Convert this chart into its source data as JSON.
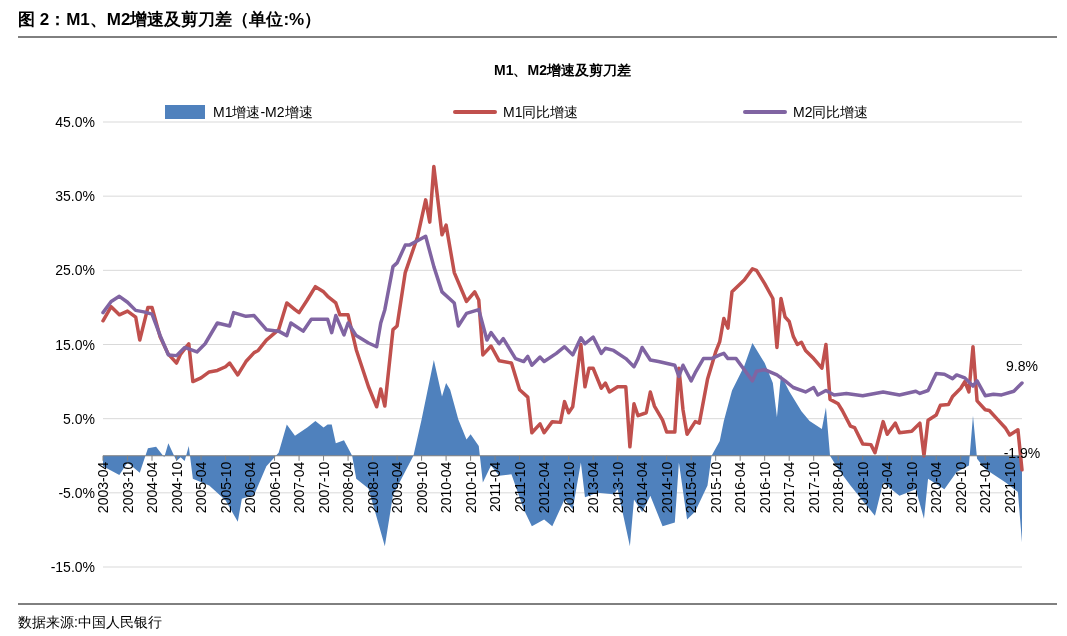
{
  "chart_data": {
    "type": "line",
    "title": "图 2：M1、M2增速及剪刀差（单位:%）",
    "subtitle": "M1、M2增速及剪刀差",
    "annotations": [
      "数据来源:中国人民银行",
      {
        "text": "9.8%",
        "x": "2022-01",
        "y": 9.8
      },
      {
        "text": "-1.9%",
        "x": "2022-01",
        "y": -1.9
      }
    ],
    "series": [
      {
        "name": "M1增速-M2增速",
        "type": "area",
        "color": "#4f81bd",
        "x": [
          "2003-04",
          "2003-08",
          "2003-10",
          "2004-01",
          "2004-03",
          "2004-05",
          "2004-07",
          "2004-08",
          "2004-10",
          "2004-11",
          "2004-12",
          "2005-01",
          "2005-02",
          "2005-06",
          "2005-10",
          "2006-01",
          "2006-02",
          "2006-05",
          "2006-08",
          "2006-11",
          "2007-01",
          "2007-03",
          "2007-06",
          "2007-08",
          "2007-10",
          "2007-11",
          "2007-12",
          "2008-01",
          "2008-03",
          "2008-05",
          "2008-06",
          "2008-09",
          "2009-01",
          "2009-03",
          "2009-08",
          "2009-10",
          "2010-01",
          "2010-03",
          "2010-04",
          "2010-05",
          "2010-07",
          "2010-09",
          "2010-10",
          "2010-12",
          "2011-01",
          "2011-03",
          "2011-05",
          "2011-08",
          "2011-11",
          "2012-01",
          "2012-04",
          "2012-06",
          "2012-09",
          "2012-11",
          "2013-01",
          "2013-02",
          "2013-05",
          "2013-09",
          "2013-10",
          "2014-01",
          "2014-02",
          "2014-04",
          "2014-06",
          "2014-09",
          "2014-12",
          "2015-01",
          "2015-03",
          "2015-05",
          "2015-08",
          "2015-09",
          "2015-11",
          "2015-12",
          "2016-02",
          "2016-05",
          "2016-07",
          "2016-10",
          "2016-12",
          "2017-01",
          "2017-02",
          "2017-04",
          "2017-07",
          "2017-09",
          "2017-12",
          "2018-01",
          "2018-02",
          "2018-04",
          "2018-07",
          "2019-01",
          "2019-03",
          "2019-07",
          "2019-11",
          "2020-01",
          "2020-02",
          "2020-06",
          "2020-09",
          "2020-12",
          "2021-01",
          "2021-02",
          "2021-04",
          "2021-09",
          "2021-12",
          "2022-01"
        ],
        "values": [
          -1.4,
          -2.6,
          -0.9,
          -2.3,
          1.0,
          1.2,
          -0.2,
          1.7,
          -0.7,
          -0.2,
          -0.7,
          1.3,
          -3.1,
          -4.0,
          -6.0,
          -8.9,
          -5.8,
          -5.3,
          -1.4,
          0.4,
          4.2,
          2.7,
          3.8,
          4.7,
          3.8,
          4.2,
          4.2,
          1.7,
          2.1,
          0.0,
          -3.1,
          -4.4,
          -12.2,
          -5.3,
          0.0,
          4.9,
          12.9,
          8.0,
          9.8,
          8.9,
          4.9,
          2.2,
          2.9,
          1.3,
          -3.6,
          -1.3,
          -2.7,
          -2.5,
          -7.2,
          -9.5,
          -8.6,
          -9.5,
          -5.9,
          -7.2,
          -0.9,
          -5.6,
          -5.0,
          -5.2,
          -4.5,
          -12.2,
          -5.9,
          -7.6,
          -5.4,
          -9.5,
          -9.0,
          -0.9,
          -8.6,
          -7.5,
          -4.0,
          0.0,
          2.0,
          4.7,
          8.8,
          12.1,
          15.2,
          12.5,
          9.8,
          5.2,
          10.9,
          8.7,
          6.0,
          4.7,
          3.6,
          6.5,
          0.0,
          -1.8,
          -4.0,
          -8.1,
          -3.6,
          -5.4,
          -4.5,
          -8.5,
          -3.1,
          -4.5,
          -2.2,
          -1.3,
          5.4,
          -0.4,
          -1.8,
          -3.6,
          -4.9,
          -11.7
        ]
      },
      {
        "name": "M1同比增速",
        "type": "line",
        "color": "#c0504d",
        "x": [
          "2003-04",
          "2003-06",
          "2003-08",
          "2003-10",
          "2003-12",
          "2004-01",
          "2004-03",
          "2004-04",
          "2004-06",
          "2004-08",
          "2004-10",
          "2004-11",
          "2005-01",
          "2005-02",
          "2005-04",
          "2005-06",
          "2005-08",
          "2005-10",
          "2005-11",
          "2006-01",
          "2006-03",
          "2006-05",
          "2006-06",
          "2006-08",
          "2006-11",
          "2007-01",
          "2007-03",
          "2007-04",
          "2007-06",
          "2007-08",
          "2007-10",
          "2007-11",
          "2008-01",
          "2008-02",
          "2008-04",
          "2008-06",
          "2008-09",
          "2008-11",
          "2008-12",
          "2009-01",
          "2009-03",
          "2009-04",
          "2009-06",
          "2009-09",
          "2009-11",
          "2009-12",
          "2010-01",
          "2010-03",
          "2010-04",
          "2010-06",
          "2010-09",
          "2010-11",
          "2010-12",
          "2011-01",
          "2011-03",
          "2011-05",
          "2011-08",
          "2011-10",
          "2011-12",
          "2012-01",
          "2012-03",
          "2012-04",
          "2012-06",
          "2012-08",
          "2012-09",
          "2012-10",
          "2012-11",
          "2013-01",
          "2013-02",
          "2013-03",
          "2013-04",
          "2013-06",
          "2013-07",
          "2013-08",
          "2013-10",
          "2013-12",
          "2014-01",
          "2014-02",
          "2014-03",
          "2014-05",
          "2014-06",
          "2014-07",
          "2014-09",
          "2014-10",
          "2014-12",
          "2015-01",
          "2015-02",
          "2015-03",
          "2015-05",
          "2015-06",
          "2015-08",
          "2015-10",
          "2015-11",
          "2015-12",
          "2016-01",
          "2016-02",
          "2016-05",
          "2016-07",
          "2016-08",
          "2016-10",
          "2016-12",
          "2017-01",
          "2017-02",
          "2017-03",
          "2017-04",
          "2017-05",
          "2017-06",
          "2017-07",
          "2017-08",
          "2017-10",
          "2017-12",
          "2018-01",
          "2018-02",
          "2018-04",
          "2018-05",
          "2018-07",
          "2018-08",
          "2018-10",
          "2018-12",
          "2019-01",
          "2019-03",
          "2019-04",
          "2019-06",
          "2019-07",
          "2019-10",
          "2019-12",
          "2020-01",
          "2020-02",
          "2020-04",
          "2020-05",
          "2020-07",
          "2020-08",
          "2020-10",
          "2020-11",
          "2020-12",
          "2021-01",
          "2021-02",
          "2021-04",
          "2021-05",
          "2021-07",
          "2021-09",
          "2021-10",
          "2021-12",
          "2022-01"
        ],
        "values": [
          18.2,
          20.1,
          19.0,
          19.5,
          18.7,
          15.6,
          20.0,
          20.0,
          16.0,
          13.7,
          12.5,
          13.7,
          15.1,
          10.0,
          10.5,
          11.3,
          11.5,
          12.0,
          12.5,
          10.9,
          12.7,
          13.9,
          14.2,
          15.6,
          17.0,
          20.6,
          19.7,
          19.3,
          21.0,
          22.8,
          22.1,
          21.5,
          20.6,
          19.0,
          19.0,
          14.3,
          9.3,
          6.6,
          9.0,
          6.7,
          17.0,
          17.5,
          24.7,
          29.5,
          34.5,
          31.5,
          39.0,
          29.8,
          31.1,
          24.7,
          20.8,
          22.1,
          21.0,
          13.6,
          14.8,
          12.8,
          12.5,
          8.9,
          7.9,
          3.1,
          4.3,
          3.1,
          4.6,
          4.5,
          7.3,
          5.8,
          6.6,
          15.0,
          9.3,
          11.8,
          11.8,
          9.1,
          9.8,
          8.6,
          9.3,
          9.3,
          1.2,
          7.0,
          5.4,
          5.8,
          8.6,
          6.7,
          4.8,
          3.2,
          3.2,
          11.8,
          6.2,
          2.9,
          4.6,
          4.4,
          10.3,
          14.0,
          15.4,
          18.5,
          17.2,
          22.1,
          23.7,
          25.2,
          25.0,
          23.2,
          21.2,
          14.6,
          21.2,
          18.7,
          18.1,
          16.1,
          15.0,
          15.3,
          14.2,
          13.1,
          11.8,
          15.0,
          7.6,
          7.0,
          6.1,
          4.0,
          3.8,
          1.6,
          1.5,
          0.4,
          4.6,
          2.9,
          4.4,
          3.1,
          3.3,
          4.4,
          0.0,
          4.8,
          5.5,
          6.8,
          6.9,
          8.0,
          9.1,
          10.0,
          8.6,
          14.7,
          7.4,
          6.2,
          6.1,
          4.9,
          3.7,
          2.8,
          3.5,
          -1.9
        ]
      },
      {
        "name": "M2同比增速",
        "type": "line",
        "color": "#8064a2",
        "x": [
          "2003-04",
          "2003-06",
          "2003-08",
          "2003-10",
          "2003-12",
          "2004-02",
          "2004-04",
          "2004-06",
          "2004-08",
          "2004-10",
          "2004-12",
          "2005-03",
          "2005-05",
          "2005-08",
          "2005-11",
          "2005-12",
          "2006-03",
          "2006-05",
          "2006-08",
          "2006-11",
          "2007-01",
          "2007-02",
          "2007-05",
          "2007-07",
          "2007-11",
          "2007-12",
          "2008-01",
          "2008-03",
          "2008-04",
          "2008-06",
          "2008-09",
          "2008-11",
          "2008-12",
          "2009-01",
          "2009-03",
          "2009-04",
          "2009-06",
          "2009-07",
          "2009-11",
          "2010-01",
          "2010-03",
          "2010-06",
          "2010-07",
          "2010-09",
          "2010-12",
          "2011-02",
          "2011-03",
          "2011-05",
          "2011-06",
          "2011-09",
          "2011-11",
          "2011-12",
          "2012-01",
          "2012-03",
          "2012-04",
          "2012-07",
          "2012-09",
          "2012-11",
          "2013-01",
          "2013-02",
          "2013-04",
          "2013-06",
          "2013-07",
          "2013-09",
          "2013-12",
          "2014-02",
          "2014-03",
          "2014-04",
          "2014-06",
          "2014-08",
          "2014-12",
          "2015-01",
          "2015-02",
          "2015-04",
          "2015-05",
          "2015-07",
          "2015-09",
          "2015-11",
          "2015-12",
          "2016-01",
          "2016-03",
          "2016-05",
          "2016-07",
          "2016-08",
          "2016-10",
          "2017-01",
          "2017-03",
          "2017-05",
          "2017-08",
          "2017-10",
          "2017-11",
          "2018-01",
          "2018-03",
          "2018-06",
          "2018-10",
          "2019-01",
          "2019-03",
          "2019-07",
          "2019-11",
          "2019-12",
          "2020-02",
          "2020-04",
          "2020-06",
          "2020-08",
          "2020-09",
          "2020-11",
          "2021-01",
          "2021-02",
          "2021-04",
          "2021-06",
          "2021-08",
          "2021-11",
          "2022-01"
        ],
        "values": [
          19.3,
          20.8,
          21.5,
          20.7,
          19.6,
          19.4,
          19.1,
          16.2,
          13.6,
          13.5,
          14.6,
          14.0,
          15.1,
          17.9,
          17.5,
          19.3,
          18.8,
          18.9,
          17.0,
          16.8,
          16.2,
          17.9,
          16.8,
          18.4,
          18.4,
          16.6,
          18.9,
          16.3,
          17.9,
          16.2,
          15.2,
          14.7,
          17.9,
          19.7,
          25.5,
          26.0,
          28.4,
          28.4,
          29.6,
          25.5,
          22.1,
          20.6,
          17.5,
          19.2,
          19.7,
          15.6,
          16.6,
          15.1,
          15.8,
          13.1,
          12.7,
          13.4,
          12.2,
          13.3,
          12.7,
          13.8,
          14.7,
          13.6,
          15.9,
          15.1,
          16.0,
          13.8,
          14.5,
          14.2,
          13.1,
          12.0,
          13.1,
          14.6,
          12.9,
          12.7,
          12.2,
          10.7,
          12.2,
          10.1,
          11.2,
          13.1,
          13.1,
          13.6,
          13.8,
          13.1,
          13.1,
          11.6,
          10.1,
          11.4,
          11.6,
          10.9,
          10.1,
          9.2,
          8.6,
          9.2,
          8.2,
          8.8,
          8.2,
          8.4,
          8.1,
          8.4,
          8.6,
          8.2,
          8.7,
          8.4,
          8.8,
          11.1,
          11.0,
          10.4,
          10.9,
          10.5,
          9.4,
          10.1,
          8.1,
          8.3,
          8.2,
          8.7,
          9.8
        ]
      }
    ],
    "xlim": [
      "2003-04",
      "2022-01"
    ],
    "xticks": [
      "2003-04",
      "2003-10",
      "2004-04",
      "2004-10",
      "2005-04",
      "2005-10",
      "2006-04",
      "2006-10",
      "2007-04",
      "2007-10",
      "2008-04",
      "2008-10",
      "2009-04",
      "2009-10",
      "2010-04",
      "2010-10",
      "2011-04",
      "2011-10",
      "2012-04",
      "2012-10",
      "2013-04",
      "2013-10",
      "2014-04",
      "2014-10",
      "2015-04",
      "2015-10",
      "2016-04",
      "2016-10",
      "2017-04",
      "2017-10",
      "2018-04",
      "2018-10",
      "2019-04",
      "2019-10",
      "2020-04",
      "2020-10",
      "2021-04",
      "2021-10"
    ],
    "ylim": [
      -15,
      45
    ],
    "yticks": [
      {
        "value": -15,
        "label": "-15.0%"
      },
      {
        "value": -5,
        "label": "-5.0%"
      },
      {
        "value": 5,
        "label": "5.0%"
      },
      {
        "value": 15,
        "label": "15.0%"
      },
      {
        "value": 25,
        "label": "25.0%"
      },
      {
        "value": 35,
        "label": "35.0%"
      },
      {
        "value": 45,
        "label": "45.0%"
      }
    ],
    "grid": "y",
    "legend": "top"
  }
}
